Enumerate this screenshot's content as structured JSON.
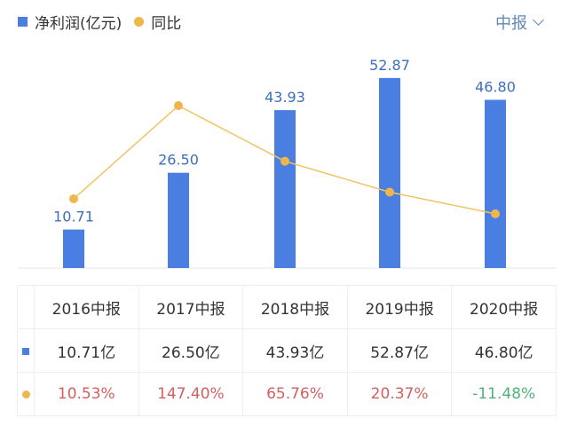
{
  "legend": {
    "bar_label": "净利润(亿元)",
    "line_label": "同比"
  },
  "period_selector": {
    "label": "中报"
  },
  "colors": {
    "bar": "#4a7ee0",
    "line": "#f0c463",
    "dot": "#f0b64e",
    "positive": "#d35f5f",
    "negative": "#4fb27a",
    "bar_label": "#3e6fb8"
  },
  "chart_data": {
    "type": "bar+line",
    "categories": [
      "2016中报",
      "2017中报",
      "2018中报",
      "2019中报",
      "2020中报"
    ],
    "series": [
      {
        "name": "净利润(亿元)",
        "type": "bar",
        "values": [
          10.71,
          26.5,
          43.93,
          52.87,
          46.8
        ],
        "labels": [
          "10.71",
          "26.50",
          "43.93",
          "52.87",
          "46.80"
        ]
      },
      {
        "name": "同比",
        "type": "line",
        "values": [
          10.53,
          147.4,
          65.76,
          20.37,
          -11.48
        ]
      }
    ],
    "grid": false
  },
  "table": {
    "headers": [
      "2016中报",
      "2017中报",
      "2018中报",
      "2019中报",
      "2020中报"
    ],
    "profit": [
      "10.71亿",
      "26.50亿",
      "43.93亿",
      "52.87亿",
      "46.80亿"
    ],
    "yoy": [
      "10.53%",
      "147.40%",
      "65.76%",
      "20.37%",
      "-11.48%"
    ]
  }
}
